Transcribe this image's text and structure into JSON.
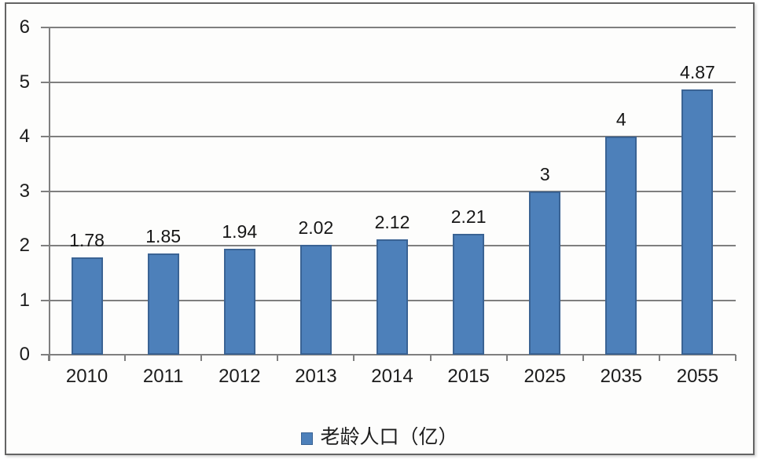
{
  "chart_data": {
    "type": "bar",
    "title": "",
    "categories": [
      "2010",
      "2011",
      "2012",
      "2013",
      "2014",
      "2015",
      "2025",
      "2035",
      "2055"
    ],
    "values": [
      1.78,
      1.85,
      1.94,
      2.02,
      2.12,
      2.21,
      3,
      4,
      4.87
    ],
    "value_labels": [
      "1.78",
      "1.85",
      "1.94",
      "2.02",
      "2.12",
      "2.21",
      "3",
      "4",
      "4.87"
    ],
    "legend": "老龄人口（亿）",
    "legend_position": "bottom",
    "xlabel": "",
    "ylabel": "",
    "ylim": [
      0,
      6
    ],
    "yticks": [
      0,
      1,
      2,
      3,
      4,
      5,
      6
    ],
    "grid": true,
    "colors": {
      "bar_fill": "#4d80ba",
      "bar_border": "#3a6394",
      "grid_line": "#7f7f7f",
      "text": "#1c1c1c",
      "frame_border": "#646464",
      "background": "#fdfdfc"
    }
  }
}
